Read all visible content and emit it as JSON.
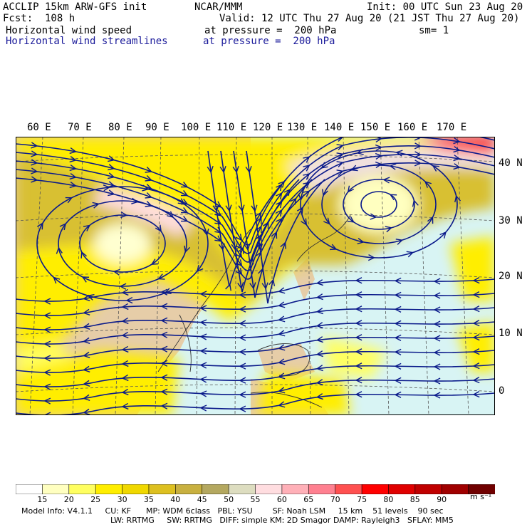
{
  "header": {
    "line1_left": "ACCLIP 15km ARW-GFS init",
    "line1_center": "NCAR/MMM",
    "line1_right": "Init: 00 UTC Sun 23 Aug 20",
    "line2_left": "Fcst:  108 h",
    "line2_right": "Valid: 12 UTC Thu 27 Aug 20 (21 JST Thu 27 Aug 20)",
    "line3_left": "Horizontal wind speed",
    "line3_center": "at pressure =  200 hPa",
    "line3_right": "sm= 1",
    "line4_left": "Horizontal wind streamlines",
    "line4_center": "at pressure =  200 hPa"
  },
  "map": {
    "lon_labels": [
      "60 E",
      "70 E",
      "80 E",
      "90 E",
      "100 E",
      "110 E",
      "120 E",
      "130 E",
      "140 E",
      "150 E",
      "160 E",
      "170 E"
    ],
    "lat_labels": [
      "40 N",
      "30 N",
      "20 N",
      "10 N",
      "0"
    ]
  },
  "colorbar": {
    "levels": [
      "15",
      "20",
      "25",
      "30",
      "35",
      "40",
      "45",
      "50",
      "55",
      "60",
      "65",
      "70",
      "75",
      "80",
      "85",
      "90"
    ],
    "unit": "m s⁻¹",
    "colors": [
      "#ffffff",
      "#ffffc0",
      "#ffff60",
      "#ffee00",
      "#f0d800",
      "#ddc020",
      "#c8b040",
      "#b4a860",
      "#ddddc0",
      "#ffdde0",
      "#ffb0b8",
      "#ff8090",
      "#ff5050",
      "#ff0000",
      "#e00000",
      "#c00000",
      "#a00000",
      "#700000"
    ]
  },
  "footer": {
    "line1": "Model Info: V4.1.1     CU: KF      MP: WDM 6class   PBL: YSU        SF: Noah LSM     15 km    51 levels    90 sec",
    "line2": "LW: RRTMG     SW: RRTMG   DIFF: simple KM: 2D Smagor DAMP: Rayleigh3   SFLAY: MM5"
  }
}
